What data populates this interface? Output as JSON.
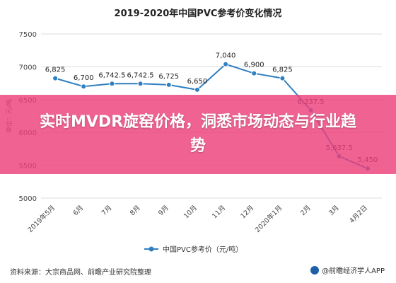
{
  "chart_data": {
    "type": "line",
    "title": "2019-2020年中国PVC参考价变化情况",
    "ylabel": "单位：元/吨",
    "ylim": [
      5000,
      7500
    ],
    "yticks": [
      5000,
      5500,
      6000,
      6500,
      7000,
      7500
    ],
    "grid": true,
    "legend_position": "bottom",
    "categories": [
      "2019年5月",
      "6月",
      "7月",
      "8月",
      "9月",
      "10月",
      "11月",
      "12月",
      "2020年1月",
      "2月",
      "3月",
      "4月2日"
    ],
    "series": [
      {
        "name": "中国PVC参考价（元/吨）",
        "color": "#2f7fc1",
        "values": [
          6825,
          6700,
          6742.5,
          6742.5,
          6725,
          6650,
          7040,
          6900,
          6825,
          6337.5,
          5637.5,
          5450
        ],
        "labels": [
          "6,825",
          "6,700",
          "6,742.5",
          "6,742.5",
          "6,725",
          "6,650",
          "7,040",
          "6,900",
          "6,825",
          "6,337.5",
          "5,637.5",
          "5,450"
        ]
      }
    ]
  },
  "banner": {
    "text": "实时MVDR旋窑价格，洞悉市场动态与行业趋势"
  },
  "footer": {
    "source": "资料来源：大宗商品网、前瞻产业研究院整理",
    "brand": "@前瞻经济学人APP"
  }
}
